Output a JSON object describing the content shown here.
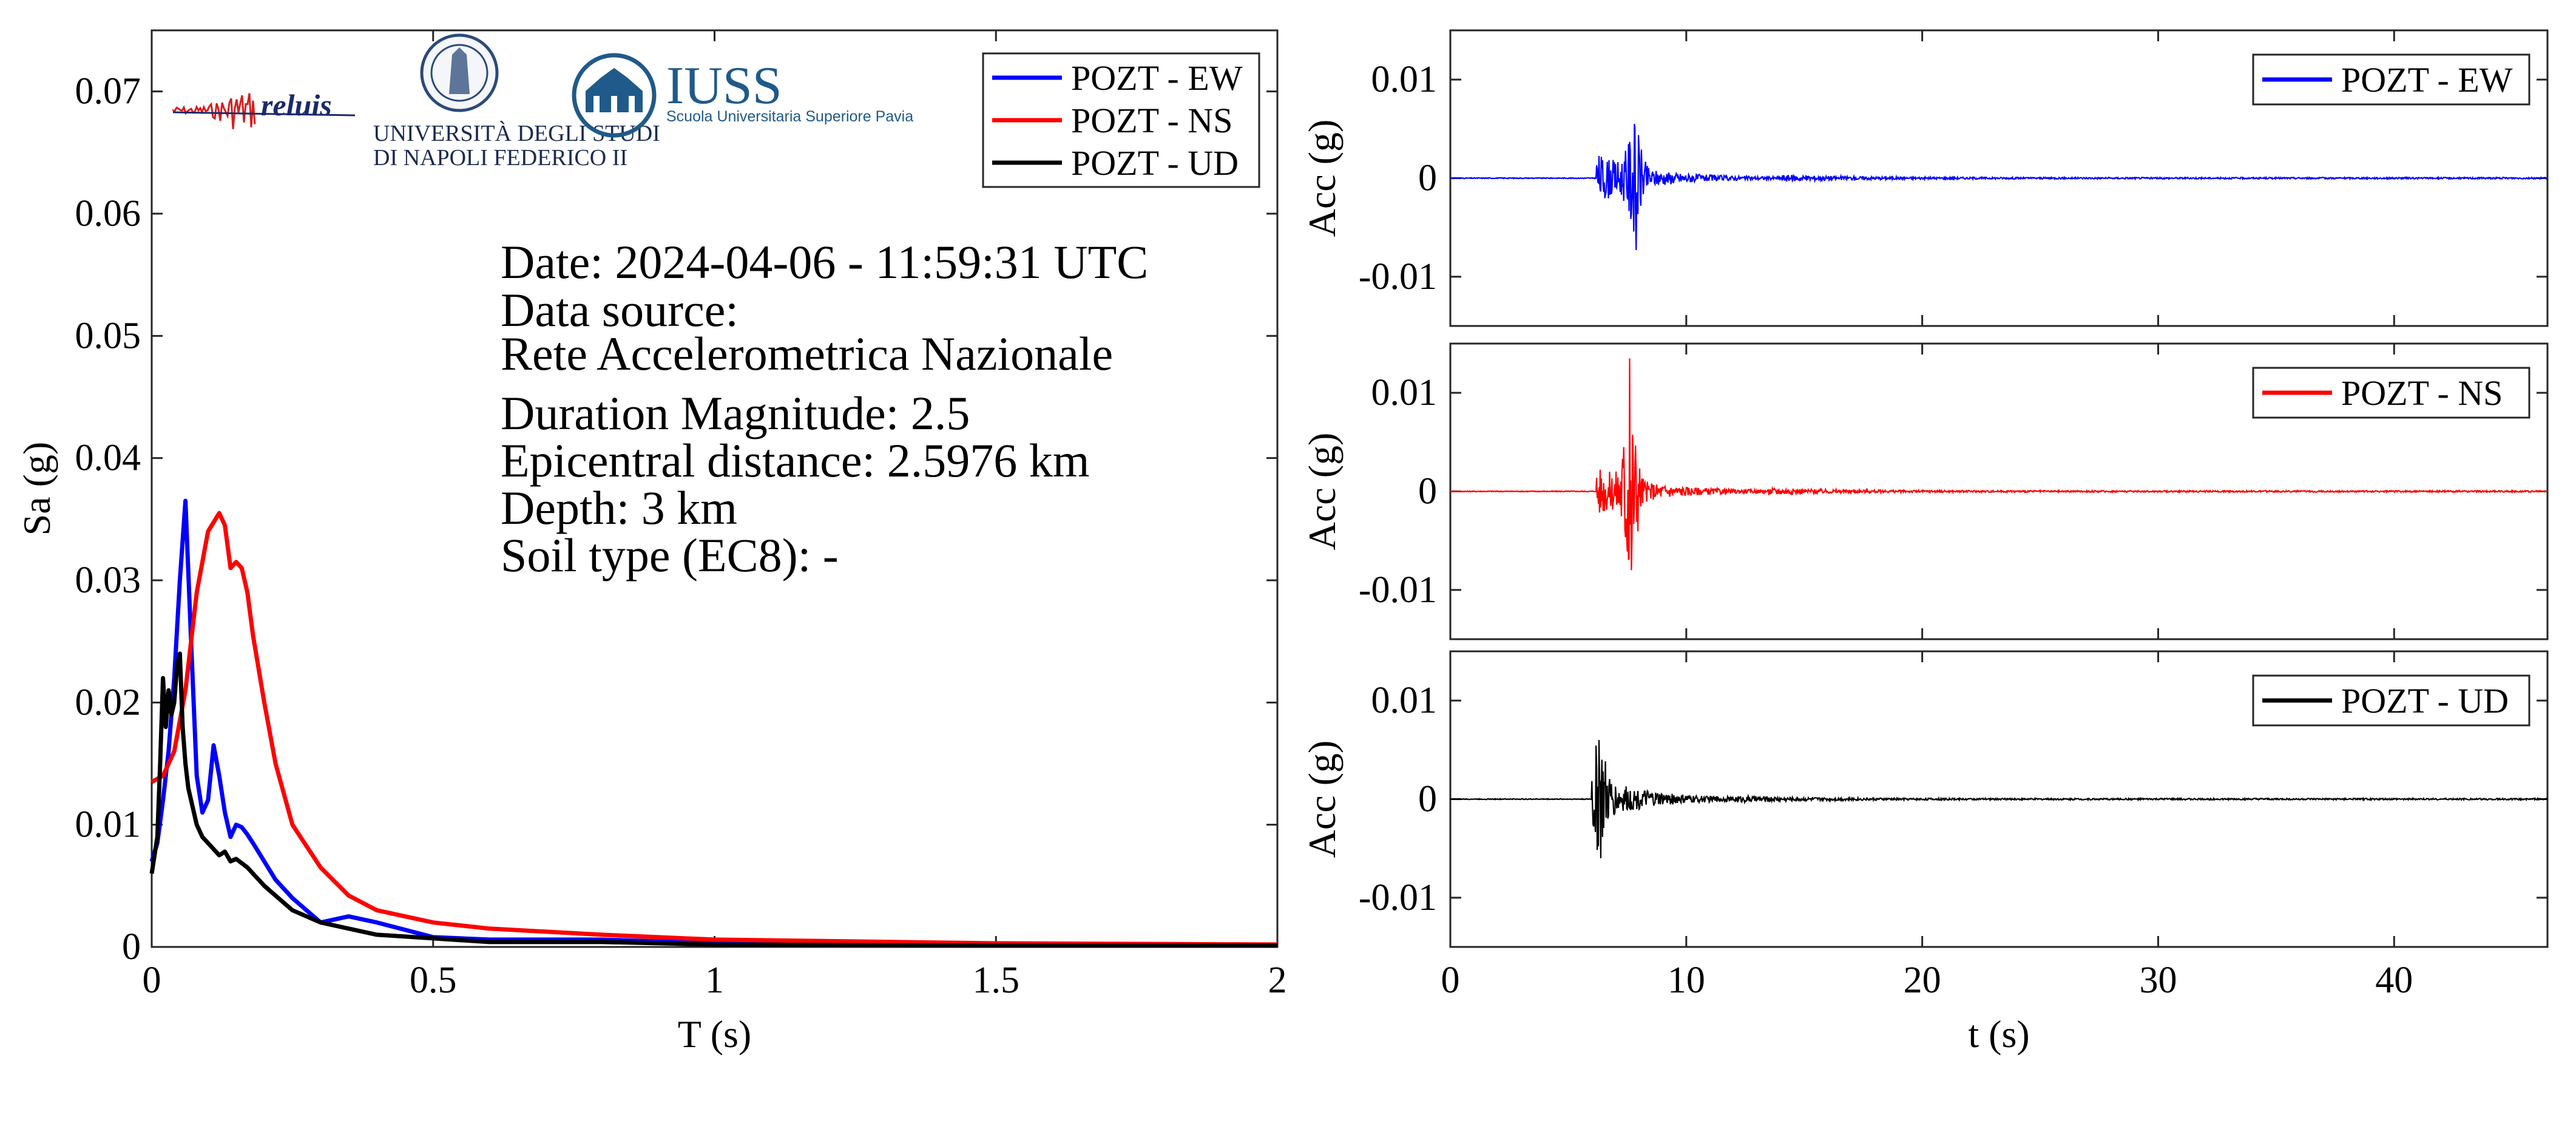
{
  "colors": {
    "ew": "#0000ff",
    "ns": "#ff0000",
    "ud": "#000000"
  },
  "logos": {
    "reluis": {
      "name": "reluis-logo",
      "text": "reluis"
    },
    "unina": {
      "name": "unina-logo",
      "line1": "UNIVERSITÀ DEGLI STUDI",
      "line2": "DI NAPOLI FEDERICO II"
    },
    "iuss": {
      "name": "iuss-logo",
      "title": "IUSS",
      "subtitle": "Scuola Universitaria Superiore Pavia"
    }
  },
  "info": {
    "date": "Date: 2024-04-06 - 11:59:31 UTC",
    "source_label": "Data source:",
    "source": "Rete Accelerometrica Nazionale",
    "magnitude": "Duration Magnitude: 2.5",
    "distance": "Epicentral distance: 2.5976 km",
    "depth": "Depth: 3 km",
    "soil": "Soil type (EC8): -"
  },
  "chart_data": [
    {
      "type": "line",
      "xlabel": "T (s)",
      "ylabel": "Sa (g)",
      "xlim": [
        0,
        2
      ],
      "ylim": [
        0,
        0.075
      ],
      "xticks": [
        0,
        0.5,
        1,
        1.5,
        2
      ],
      "xtick_labels": [
        "0",
        "0.5",
        "1",
        "1.5",
        "2"
      ],
      "yticks": [
        0,
        0.01,
        0.02,
        0.03,
        0.04,
        0.05,
        0.06,
        0.07
      ],
      "ytick_labels": [
        "0",
        "0.01",
        "0.02",
        "0.03",
        "0.04",
        "0.05",
        "0.06",
        "0.07"
      ],
      "grid": false,
      "legend": "top-right",
      "series": [
        {
          "name": "POZT - EW",
          "color": "#0000ff",
          "x": [
            0,
            0.01,
            0.02,
            0.03,
            0.04,
            0.05,
            0.06,
            0.07,
            0.08,
            0.09,
            0.1,
            0.11,
            0.12,
            0.13,
            0.14,
            0.15,
            0.16,
            0.17,
            0.18,
            0.2,
            0.22,
            0.25,
            0.3,
            0.35,
            0.4,
            0.5,
            0.6,
            0.8,
            1.0,
            1.5,
            2.0
          ],
          "y": [
            0.007,
            0.0085,
            0.012,
            0.016,
            0.022,
            0.03,
            0.0365,
            0.025,
            0.014,
            0.011,
            0.012,
            0.0165,
            0.014,
            0.011,
            0.009,
            0.01,
            0.0098,
            0.0092,
            0.0085,
            0.007,
            0.0055,
            0.004,
            0.002,
            0.0025,
            0.002,
            0.0008,
            0.0006,
            0.0006,
            0.0003,
            0.0002,
            0.0001
          ]
        },
        {
          "name": "POZT - NS",
          "color": "#ff0000",
          "x": [
            0,
            0.02,
            0.04,
            0.06,
            0.08,
            0.1,
            0.12,
            0.13,
            0.14,
            0.15,
            0.16,
            0.17,
            0.18,
            0.2,
            0.22,
            0.25,
            0.3,
            0.35,
            0.4,
            0.5,
            0.6,
            0.8,
            1.0,
            1.5,
            2.0
          ],
          "y": [
            0.0135,
            0.014,
            0.016,
            0.021,
            0.029,
            0.034,
            0.0355,
            0.0345,
            0.031,
            0.0315,
            0.031,
            0.029,
            0.0255,
            0.02,
            0.015,
            0.01,
            0.0065,
            0.0042,
            0.003,
            0.002,
            0.0015,
            0.001,
            0.0006,
            0.0003,
            0.0002
          ]
        },
        {
          "name": "POZT - UD",
          "color": "#000000",
          "x": [
            0,
            0.01,
            0.015,
            0.02,
            0.025,
            0.03,
            0.035,
            0.04,
            0.045,
            0.05,
            0.055,
            0.06,
            0.065,
            0.07,
            0.08,
            0.09,
            0.1,
            0.11,
            0.12,
            0.13,
            0.14,
            0.15,
            0.17,
            0.2,
            0.25,
            0.3,
            0.35,
            0.4,
            0.5,
            0.6,
            0.8,
            1.0,
            1.5,
            2.0
          ],
          "y": [
            0.006,
            0.009,
            0.015,
            0.022,
            0.018,
            0.021,
            0.019,
            0.02,
            0.023,
            0.024,
            0.018,
            0.015,
            0.013,
            0.012,
            0.01,
            0.009,
            0.0085,
            0.008,
            0.0075,
            0.0078,
            0.007,
            0.0072,
            0.0065,
            0.005,
            0.003,
            0.002,
            0.0015,
            0.001,
            0.0007,
            0.0004,
            0.0004,
            0.0002,
            0.0001,
            0.0001
          ]
        }
      ]
    },
    {
      "type": "line",
      "xlabel": "",
      "ylabel": "Acc (g)",
      "xlim": [
        0,
        46.5
      ],
      "ylim": [
        -0.015,
        0.015
      ],
      "yticks": [
        -0.01,
        0,
        0.01
      ],
      "ytick_labels": [
        "-0.01",
        "0",
        "0.01"
      ],
      "legend": "top-right",
      "series": [
        {
          "name": "POZT - EW",
          "color": "#0000ff",
          "onset": 6.2,
          "peak_time": 7.8,
          "peak_pos": 0.0055,
          "peak_neg": -0.0073,
          "coda_end": 14.0
        }
      ]
    },
    {
      "type": "line",
      "xlabel": "",
      "ylabel": "Acc (g)",
      "xlim": [
        0,
        46.5
      ],
      "ylim": [
        -0.015,
        0.015
      ],
      "yticks": [
        -0.01,
        0,
        0.01
      ],
      "ytick_labels": [
        "-0.01",
        "0",
        "0.01"
      ],
      "legend": "top-right",
      "series": [
        {
          "name": "POZT - NS",
          "color": "#ff0000",
          "onset": 6.2,
          "peak_time": 7.6,
          "peak_pos": 0.0135,
          "peak_neg": -0.008,
          "coda_end": 13.5
        }
      ]
    },
    {
      "type": "line",
      "xlabel": "t (s)",
      "ylabel": "Acc (g)",
      "xlim": [
        0,
        46.5
      ],
      "ylim": [
        -0.015,
        0.015
      ],
      "xticks": [
        0,
        10,
        20,
        30,
        40
      ],
      "xtick_labels": [
        "0",
        "10",
        "20",
        "30",
        "40"
      ],
      "yticks": [
        -0.01,
        0,
        0.01
      ],
      "ytick_labels": [
        "-0.01",
        "0",
        "0.01"
      ],
      "legend": "top-right",
      "series": [
        {
          "name": "POZT - UD",
          "color": "#000000",
          "onset": 6.0,
          "peak_time": 6.3,
          "peak_pos": 0.006,
          "peak_neg": -0.006,
          "coda_end": 12.0
        }
      ]
    }
  ]
}
